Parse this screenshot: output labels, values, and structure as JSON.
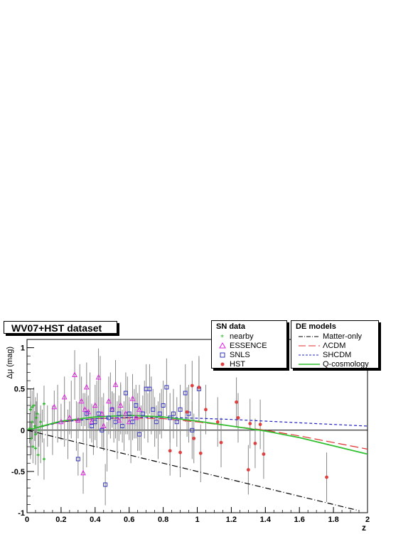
{
  "chart_data": {
    "type": "scatter",
    "title": "WV07+HST dataset",
    "xlabel": "z",
    "ylabel": "Δμ (mag)",
    "xlim": [
      0,
      2
    ],
    "ylim": [
      -1,
      1.1
    ],
    "x_ticks": [
      "0",
      "0.2",
      "0.4",
      "0.6",
      "0.8",
      "1",
      "1.2",
      "1.4",
      "1.6",
      "1.8",
      "2"
    ],
    "y_ticks": [
      "-1",
      "-0.5",
      "0",
      "0.5",
      "1"
    ],
    "grid": false,
    "legends": {
      "sn_title": "SN data",
      "de_title": "DE models"
    },
    "datasets": [
      {
        "name": "nearby",
        "marker": "star",
        "color": "#2db52d",
        "points": [
          [
            0.015,
            0.02,
            0.18
          ],
          [
            0.02,
            0.25,
            0.25
          ],
          [
            0.025,
            -0.1,
            0.2
          ],
          [
            0.03,
            0.1,
            0.2
          ],
          [
            0.035,
            -0.2,
            0.2
          ],
          [
            0.04,
            0.3,
            0.22
          ],
          [
            0.045,
            0.05,
            0.18
          ],
          [
            0.05,
            -0.05,
            0.2
          ],
          [
            0.055,
            0.15,
            0.2
          ],
          [
            0.06,
            0.2,
            0.25
          ],
          [
            0.065,
            -0.3,
            0.25
          ],
          [
            0.07,
            0.0,
            0.2
          ],
          [
            0.08,
            0.1,
            0.2
          ],
          [
            0.09,
            0.05,
            0.2
          ],
          [
            0.1,
            -0.35,
            0.25
          ],
          [
            0.1,
            0.32,
            0.22
          ],
          [
            0.05,
            -0.22,
            0.2
          ],
          [
            0.03,
            0.28,
            0.2
          ]
        ]
      },
      {
        "name": "ESSENCE",
        "marker": "triangle",
        "color": "#e020e0",
        "points": [
          [
            0.16,
            0.28,
            0.2
          ],
          [
            0.2,
            0.1,
            0.22
          ],
          [
            0.22,
            0.4,
            0.25
          ],
          [
            0.25,
            0.15,
            0.2
          ],
          [
            0.28,
            0.67,
            0.3
          ],
          [
            0.3,
            0.12,
            0.22
          ],
          [
            0.32,
            0.35,
            0.3
          ],
          [
            0.33,
            -0.52,
            0.25
          ],
          [
            0.34,
            0.25,
            0.2
          ],
          [
            0.35,
            0.52,
            0.3
          ],
          [
            0.36,
            0.22,
            0.2
          ],
          [
            0.38,
            0.1,
            0.22
          ],
          [
            0.4,
            0.3,
            0.25
          ],
          [
            0.42,
            0.64,
            0.35
          ],
          [
            0.44,
            0.2,
            0.2
          ],
          [
            0.45,
            0.05,
            0.25
          ],
          [
            0.48,
            0.35,
            0.3
          ],
          [
            0.5,
            0.25,
            0.22
          ],
          [
            0.52,
            0.55,
            0.3
          ],
          [
            0.54,
            0.12,
            0.25
          ],
          [
            0.55,
            0.3,
            0.28
          ],
          [
            0.58,
            0.2,
            0.25
          ],
          [
            0.6,
            0.1,
            0.22
          ],
          [
            0.62,
            0.38,
            0.3
          ],
          [
            0.64,
            0.15,
            0.25
          ],
          [
            0.66,
            0.25,
            0.3
          ]
        ]
      },
      {
        "name": "SNLS",
        "marker": "square",
        "color": "#3030c0",
        "points": [
          [
            0.3,
            -0.35,
            0.2
          ],
          [
            0.35,
            0.2,
            0.2
          ],
          [
            0.38,
            0.05,
            0.2
          ],
          [
            0.4,
            0.1,
            0.22
          ],
          [
            0.42,
            0.2,
            0.2
          ],
          [
            0.44,
            0.0,
            0.22
          ],
          [
            0.46,
            -0.66,
            0.25
          ],
          [
            0.48,
            0.15,
            0.2
          ],
          [
            0.5,
            0.25,
            0.22
          ],
          [
            0.52,
            0.1,
            0.2
          ],
          [
            0.54,
            0.2,
            0.22
          ],
          [
            0.56,
            0.05,
            0.2
          ],
          [
            0.58,
            0.45,
            0.25
          ],
          [
            0.6,
            0.2,
            0.2
          ],
          [
            0.62,
            0.1,
            0.22
          ],
          [
            0.64,
            0.3,
            0.25
          ],
          [
            0.66,
            -0.05,
            0.2
          ],
          [
            0.68,
            0.2,
            0.22
          ],
          [
            0.7,
            0.5,
            0.3
          ],
          [
            0.72,
            0.5,
            0.3
          ],
          [
            0.74,
            0.25,
            0.25
          ],
          [
            0.76,
            0.1,
            0.2
          ],
          [
            0.78,
            0.2,
            0.25
          ],
          [
            0.8,
            0.3,
            0.3
          ],
          [
            0.82,
            0.52,
            0.35
          ],
          [
            0.84,
            0.15,
            0.3
          ],
          [
            0.86,
            0.2,
            0.3
          ],
          [
            0.88,
            0.1,
            0.3
          ],
          [
            0.9,
            0.25,
            0.3
          ],
          [
            0.93,
            0.45,
            0.35
          ],
          [
            0.95,
            0.2,
            0.35
          ],
          [
            0.97,
            0.0,
            0.35
          ],
          [
            1.01,
            0.5,
            0.4
          ]
        ]
      },
      {
        "name": "HST",
        "marker": "circle",
        "color": "#e04040",
        "points": [
          [
            0.84,
            -0.25,
            0.3
          ],
          [
            0.9,
            -0.27,
            0.3
          ],
          [
            0.94,
            0.22,
            0.3
          ],
          [
            0.97,
            0.54,
            0.3
          ],
          [
            0.98,
            -0.1,
            0.3
          ],
          [
            1.01,
            0.52,
            0.35
          ],
          [
            1.02,
            -0.28,
            0.35
          ],
          [
            1.05,
            0.25,
            0.3
          ],
          [
            1.12,
            0.1,
            0.3
          ],
          [
            1.14,
            -0.15,
            0.3
          ],
          [
            1.23,
            0.34,
            0.3
          ],
          [
            1.24,
            0.15,
            0.3
          ],
          [
            1.3,
            -0.48,
            0.3
          ],
          [
            1.31,
            0.08,
            0.3
          ],
          [
            1.34,
            -0.16,
            0.3
          ],
          [
            1.37,
            0.07,
            0.3
          ],
          [
            1.39,
            -0.29,
            0.3
          ],
          [
            1.76,
            -0.57,
            0.3
          ]
        ]
      }
    ],
    "models": [
      {
        "name": "Matter-only",
        "color": "#000000",
        "dash": "dashdot",
        "x": [
          0,
          0.2,
          0.4,
          0.6,
          0.8,
          1.0,
          1.2,
          1.4,
          1.6,
          1.8,
          1.95
        ],
        "y": [
          0,
          -0.1,
          -0.2,
          -0.3,
          -0.4,
          -0.5,
          -0.6,
          -0.7,
          -0.8,
          -0.9,
          -0.975
        ]
      },
      {
        "name": "ΛCDM",
        "color": "#e03030",
        "dash": "longdash",
        "x": [
          0,
          0.2,
          0.4,
          0.6,
          0.8,
          1.0,
          1.2,
          1.4,
          1.6,
          1.8,
          2.0
        ],
        "y": [
          0,
          0.1,
          0.14,
          0.15,
          0.14,
          0.1,
          0.05,
          0,
          -0.07,
          -0.15,
          -0.23
        ]
      },
      {
        "name": "SHCDM",
        "color": "#2020c0",
        "dash": "dotted",
        "x": [
          0,
          0.2,
          0.4,
          0.6,
          0.8,
          1.0,
          1.2,
          1.4,
          1.6,
          1.8,
          2.0
        ],
        "y": [
          0,
          0.1,
          0.14,
          0.155,
          0.155,
          0.145,
          0.13,
          0.11,
          0.09,
          0.07,
          0.05
        ]
      },
      {
        "name": "Q-cosmology",
        "color": "#30c030",
        "dash": "solid",
        "x": [
          0,
          0.2,
          0.4,
          0.6,
          0.8,
          1.0,
          1.2,
          1.4,
          1.6,
          1.8,
          2.0
        ],
        "y": [
          0,
          0.11,
          0.16,
          0.18,
          0.16,
          0.11,
          0.05,
          -0.01,
          -0.09,
          -0.19,
          -0.29
        ]
      }
    ],
    "grey_errorbars": [
      [
        0.02,
        0.0,
        0.35
      ],
      [
        0.05,
        0.1,
        0.3
      ],
      [
        0.08,
        -0.1,
        0.3
      ],
      [
        0.12,
        0.05,
        0.25
      ],
      [
        0.15,
        0.0,
        0.3
      ],
      [
        0.18,
        0.2,
        0.35
      ],
      [
        0.22,
        0.1,
        0.3
      ],
      [
        0.24,
        -0.05,
        0.3
      ],
      [
        0.26,
        0.25,
        0.35
      ],
      [
        0.29,
        0.05,
        0.3
      ],
      [
        0.31,
        0.4,
        0.4
      ],
      [
        0.33,
        0.15,
        0.3
      ],
      [
        0.35,
        -0.1,
        0.35
      ],
      [
        0.37,
        0.3,
        0.4
      ],
      [
        0.39,
        0.0,
        0.3
      ],
      [
        0.41,
        0.2,
        0.4
      ],
      [
        0.43,
        0.45,
        0.45
      ],
      [
        0.45,
        0.1,
        0.35
      ],
      [
        0.47,
        -0.2,
        0.3
      ],
      [
        0.49,
        0.3,
        0.4
      ],
      [
        0.51,
        0.15,
        0.3
      ],
      [
        0.53,
        0.0,
        0.35
      ],
      [
        0.55,
        0.25,
        0.3
      ],
      [
        0.57,
        0.05,
        0.3
      ],
      [
        0.59,
        0.3,
        0.35
      ],
      [
        0.61,
        -0.1,
        0.3
      ],
      [
        0.63,
        0.2,
        0.3
      ],
      [
        0.65,
        0.1,
        0.35
      ],
      [
        0.67,
        0.0,
        0.3
      ],
      [
        0.69,
        0.25,
        0.35
      ],
      [
        0.71,
        0.15,
        0.3
      ],
      [
        0.73,
        0.3,
        0.35
      ],
      [
        0.75,
        0.1,
        0.3
      ],
      [
        0.77,
        0.0,
        0.35
      ],
      [
        0.79,
        0.2,
        0.3
      ]
    ]
  }
}
